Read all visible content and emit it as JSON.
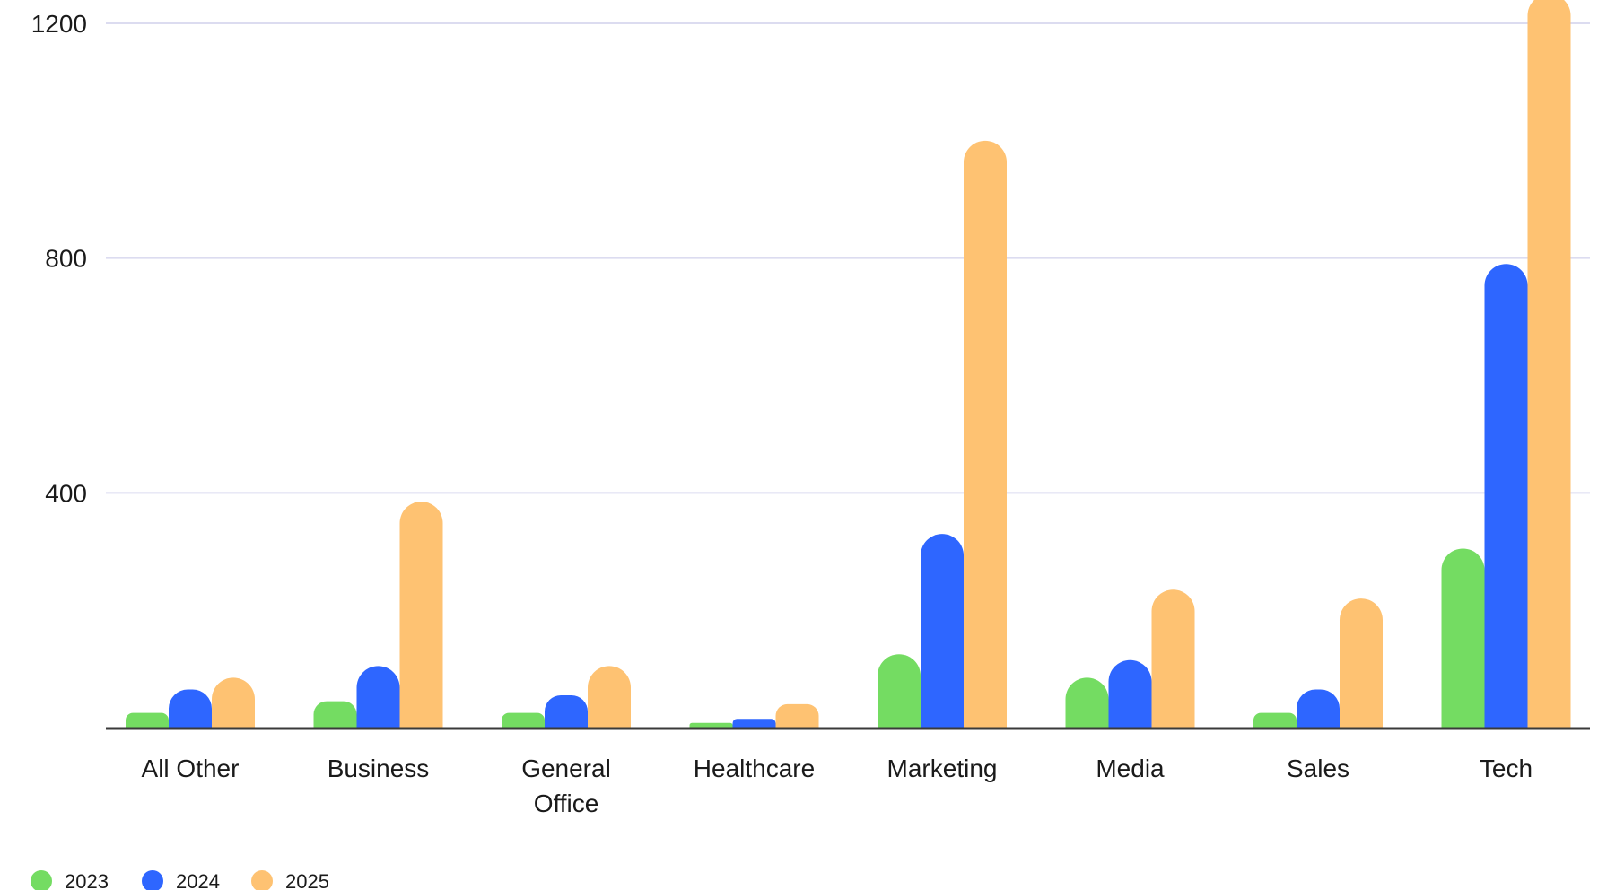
{
  "chart_data": {
    "type": "bar",
    "title": "",
    "xlabel": "",
    "ylabel": "",
    "categories": [
      "All Other",
      "Business",
      "General Office",
      "Healthcare",
      "Marketing",
      "Media",
      "Sales",
      "Tech"
    ],
    "category_lines": [
      [
        "All Other"
      ],
      [
        "Business"
      ],
      [
        "General",
        "Office"
      ],
      [
        "Healthcare"
      ],
      [
        "Marketing"
      ],
      [
        "Media"
      ],
      [
        "Sales"
      ],
      [
        "Tech"
      ]
    ],
    "series": [
      {
        "name": "2023",
        "color": "#74dc62",
        "values": [
          25,
          45,
          25,
          8,
          125,
          85,
          25,
          305
        ]
      },
      {
        "name": "2024",
        "color": "#2e66ff",
        "values": [
          65,
          105,
          55,
          15,
          330,
          115,
          65,
          790
        ]
      },
      {
        "name": "2025",
        "color": "#fec272",
        "values": [
          85,
          385,
          105,
          40,
          1000,
          235,
          220,
          1250
        ]
      }
    ],
    "ylim": [
      0,
      1200
    ],
    "yticks": [
      400,
      800,
      1200
    ],
    "ytick_labels": [
      "400",
      "800",
      "1200"
    ],
    "grid": true,
    "legend_position": "bottom-left",
    "colors": {
      "grid": "#dcdcf0",
      "baseline": "#3a3a3a",
      "text": "#1a1a1a"
    }
  }
}
